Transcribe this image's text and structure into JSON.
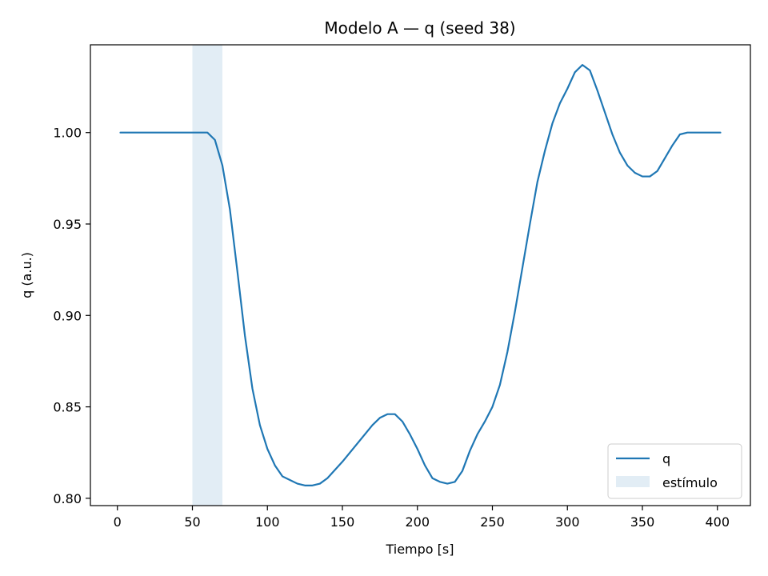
{
  "chart_data": {
    "type": "line",
    "title": "Modelo A — q (seed 38)",
    "xlabel": "Tiempo [s]",
    "ylabel": "q (a.u.)",
    "xlim": [
      -18,
      422
    ],
    "ylim": [
      0.796,
      1.048
    ],
    "x_ticks": [
      0,
      50,
      100,
      150,
      200,
      250,
      300,
      350,
      400
    ],
    "y_ticks": [
      0.8,
      0.85,
      0.9,
      0.95,
      1.0
    ],
    "y_tick_labels": [
      "0.80",
      "0.85",
      "0.90",
      "0.95",
      "1.00"
    ],
    "grid": false,
    "legend_position": "lower-right",
    "series": [
      {
        "name": "q",
        "color": "#1f77b4",
        "x": [
          2,
          20,
          40,
          50,
          55,
          60,
          65,
          70,
          75,
          80,
          85,
          90,
          95,
          100,
          105,
          110,
          115,
          120,
          125,
          130,
          135,
          140,
          150,
          160,
          170,
          175,
          180,
          185,
          190,
          195,
          200,
          205,
          210,
          215,
          220,
          225,
          230,
          235,
          240,
          245,
          250,
          255,
          260,
          265,
          270,
          275,
          280,
          285,
          290,
          295,
          300,
          305,
          310,
          315,
          320,
          325,
          330,
          335,
          340,
          345,
          350,
          355,
          360,
          365,
          370,
          375,
          380,
          385,
          390,
          395,
          400,
          402
        ],
        "values": [
          1.0,
          1.0,
          1.0,
          1.0,
          1.0,
          1.0,
          0.996,
          0.982,
          0.958,
          0.924,
          0.889,
          0.86,
          0.84,
          0.827,
          0.818,
          0.812,
          0.81,
          0.808,
          0.807,
          0.807,
          0.808,
          0.811,
          0.82,
          0.83,
          0.84,
          0.844,
          0.846,
          0.846,
          0.842,
          0.835,
          0.827,
          0.818,
          0.811,
          0.809,
          0.808,
          0.809,
          0.815,
          0.826,
          0.835,
          0.842,
          0.85,
          0.862,
          0.88,
          0.902,
          0.926,
          0.95,
          0.973,
          0.99,
          1.005,
          1.016,
          1.024,
          1.033,
          1.037,
          1.034,
          1.023,
          1.011,
          0.999,
          0.989,
          0.982,
          0.978,
          0.976,
          0.976,
          0.979,
          0.986,
          0.993,
          0.999,
          1.0,
          1.0,
          1.0,
          1.0,
          1.0,
          1.0
        ]
      }
    ],
    "shaded_region": {
      "name": "estímulo",
      "x_start": 50,
      "x_end": 70,
      "color": "#1f77b4",
      "opacity": 0.13
    },
    "legend": [
      "q",
      "estímulo"
    ]
  }
}
